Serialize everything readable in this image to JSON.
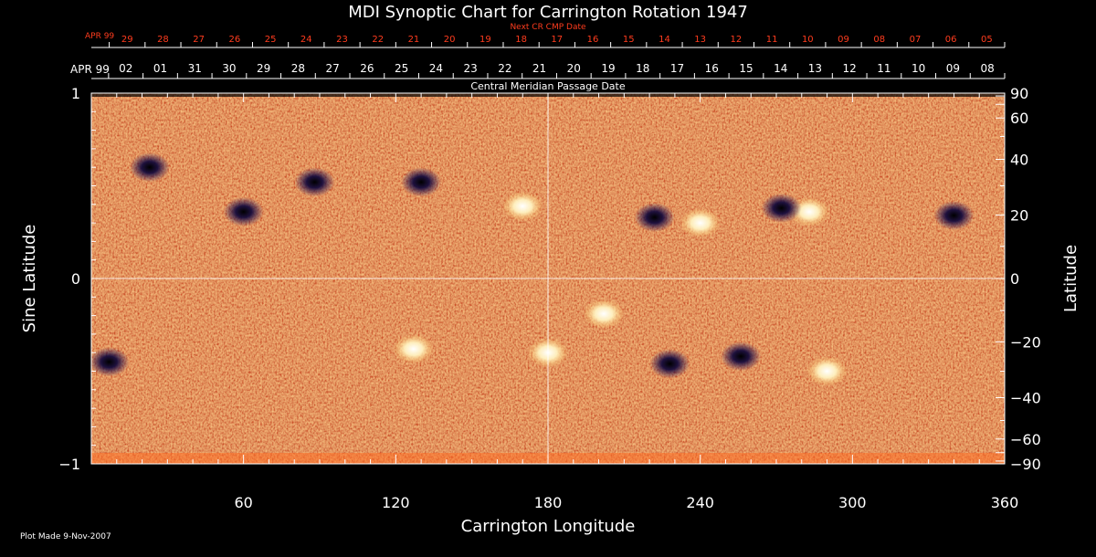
{
  "chart_data": {
    "type": "heatmap",
    "title": "MDI Synoptic Chart for Carrington Rotation 1947",
    "xlabel": "Carrington Longitude",
    "ylabel_left": "Sine Latitude",
    "ylabel_right": "Latitude",
    "xlim": [
      0,
      360
    ],
    "ylim": [
      -1,
      1
    ],
    "x_ticks": [
      60,
      120,
      180,
      240,
      300,
      360
    ],
    "y_ticks_left": [
      {
        "v": 1,
        "label": "1"
      },
      {
        "v": 0,
        "label": "0"
      },
      {
        "v": -1,
        "label": "−1"
      }
    ],
    "y_ticks_right": [
      90,
      60,
      40,
      20,
      0,
      -20,
      -40,
      -60,
      -90
    ],
    "top_axis_cmp": {
      "caption": "Central Meridian Passage Date",
      "month": "APR 99",
      "days": [
        "02",
        "01",
        "31",
        "30",
        "29",
        "28",
        "27",
        "26",
        "25",
        "24",
        "23",
        "22",
        "21",
        "20",
        "19",
        "18",
        "17",
        "16",
        "15",
        "14",
        "13",
        "12",
        "11",
        "10",
        "09",
        "08"
      ]
    },
    "top_axis_next": {
      "caption": "Next CR CMP Date",
      "month": "APR 99",
      "days": [
        "29",
        "28",
        "27",
        "26",
        "25",
        "24",
        "23",
        "22",
        "21",
        "20",
        "19",
        "18",
        "17",
        "16",
        "15",
        "14",
        "13",
        "12",
        "11",
        "10",
        "09",
        "08",
        "07",
        "06",
        "05"
      ]
    },
    "colorscale": [
      "#1a0f4a",
      "#c8280a",
      "#ff5a14",
      "#ffb040",
      "#fff4c8"
    ],
    "active_regions": [
      {
        "lon": 283,
        "sinlat": 0.36,
        "polarity": "positive"
      },
      {
        "lon": 272,
        "sinlat": 0.38,
        "polarity": "negative"
      },
      {
        "lon": 240,
        "sinlat": 0.3,
        "polarity": "positive"
      },
      {
        "lon": 222,
        "sinlat": 0.33,
        "polarity": "negative"
      },
      {
        "lon": 88,
        "sinlat": 0.52,
        "polarity": "negative"
      },
      {
        "lon": 60,
        "sinlat": 0.36,
        "polarity": "negative"
      },
      {
        "lon": 130,
        "sinlat": 0.52,
        "polarity": "negative"
      },
      {
        "lon": 170,
        "sinlat": 0.39,
        "polarity": "positive"
      },
      {
        "lon": 23,
        "sinlat": 0.6,
        "polarity": "negative"
      },
      {
        "lon": 340,
        "sinlat": 0.34,
        "polarity": "negative"
      },
      {
        "lon": 202,
        "sinlat": -0.19,
        "polarity": "positive"
      },
      {
        "lon": 228,
        "sinlat": -0.46,
        "polarity": "negative"
      },
      {
        "lon": 256,
        "sinlat": -0.42,
        "polarity": "negative"
      },
      {
        "lon": 7,
        "sinlat": -0.45,
        "polarity": "negative"
      },
      {
        "lon": 127,
        "sinlat": -0.38,
        "polarity": "positive"
      },
      {
        "lon": 180,
        "sinlat": -0.4,
        "polarity": "positive"
      },
      {
        "lon": 290,
        "sinlat": -0.5,
        "polarity": "positive"
      }
    ]
  },
  "footer": {
    "plot_made": "Plot Made  9-Nov-2007"
  }
}
